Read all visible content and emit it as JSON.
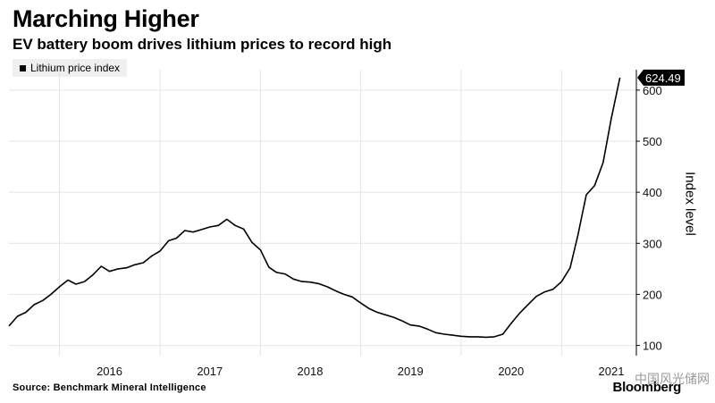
{
  "title": "Marching Higher",
  "subtitle": "EV battery boom drives lithium prices to record high",
  "legend_label": "Lithium price index",
  "source": "Source: Benchmark Mineral Intelligence",
  "brand": "Bloomberg",
  "watermark": "中国风光储网",
  "last_value_label": "624.49",
  "chart_data": {
    "type": "line",
    "title": "Marching Higher",
    "subtitle": "EV battery boom drives lithium prices to record high",
    "ylabel": "Index level",
    "xlabel": "",
    "ylim": [
      80,
      640
    ],
    "xlim": [
      "2015-07-01",
      "2021-09-30"
    ],
    "yticks": [
      100,
      200,
      300,
      400,
      500,
      600
    ],
    "xticks": [
      "2016",
      "2017",
      "2018",
      "2019",
      "2020",
      "2021"
    ],
    "grid": true,
    "legend": "top-left",
    "series": [
      {
        "name": "Lithium price index",
        "color": "#000000",
        "x": [
          "2015-07-01",
          "2015-08-01",
          "2015-09-01",
          "2015-10-01",
          "2015-11-01",
          "2015-12-01",
          "2016-01-01",
          "2016-02-01",
          "2016-03-01",
          "2016-04-01",
          "2016-05-01",
          "2016-06-01",
          "2016-07-01",
          "2016-08-01",
          "2016-09-01",
          "2016-10-01",
          "2016-11-01",
          "2016-12-01",
          "2017-01-01",
          "2017-02-01",
          "2017-03-01",
          "2017-04-01",
          "2017-05-01",
          "2017-06-01",
          "2017-07-01",
          "2017-08-01",
          "2017-09-01",
          "2017-10-01",
          "2017-11-01",
          "2017-12-01",
          "2018-01-01",
          "2018-02-01",
          "2018-03-01",
          "2018-04-01",
          "2018-05-01",
          "2018-06-01",
          "2018-07-01",
          "2018-08-01",
          "2018-09-01",
          "2018-10-01",
          "2018-11-01",
          "2018-12-01",
          "2019-01-01",
          "2019-02-01",
          "2019-03-01",
          "2019-04-01",
          "2019-05-01",
          "2019-06-01",
          "2019-07-01",
          "2019-08-01",
          "2019-09-01",
          "2019-10-01",
          "2019-11-01",
          "2019-12-01",
          "2020-01-01",
          "2020-02-01",
          "2020-03-01",
          "2020-04-01",
          "2020-05-01",
          "2020-06-01",
          "2020-07-01",
          "2020-08-01",
          "2020-09-01",
          "2020-10-01",
          "2020-11-01",
          "2020-12-01",
          "2021-01-01",
          "2021-02-01",
          "2021-03-01",
          "2021-04-01",
          "2021-05-01",
          "2021-06-01",
          "2021-07-01",
          "2021-08-01"
        ],
        "values": [
          138,
          157,
          165,
          180,
          188,
          200,
          215,
          228,
          220,
          225,
          238,
          255,
          245,
          250,
          252,
          258,
          262,
          275,
          285,
          305,
          310,
          325,
          322,
          327,
          332,
          335,
          347,
          335,
          328,
          302,
          287,
          253,
          243,
          240,
          230,
          225,
          224,
          221,
          215,
          207,
          200,
          195,
          183,
          172,
          165,
          160,
          155,
          148,
          140,
          138,
          132,
          125,
          122,
          120,
          118,
          117,
          117,
          116,
          117,
          122,
          143,
          163,
          180,
          196,
          205,
          210,
          225,
          252,
          315,
          395,
          413,
          458,
          545,
          624.49
        ]
      }
    ]
  }
}
